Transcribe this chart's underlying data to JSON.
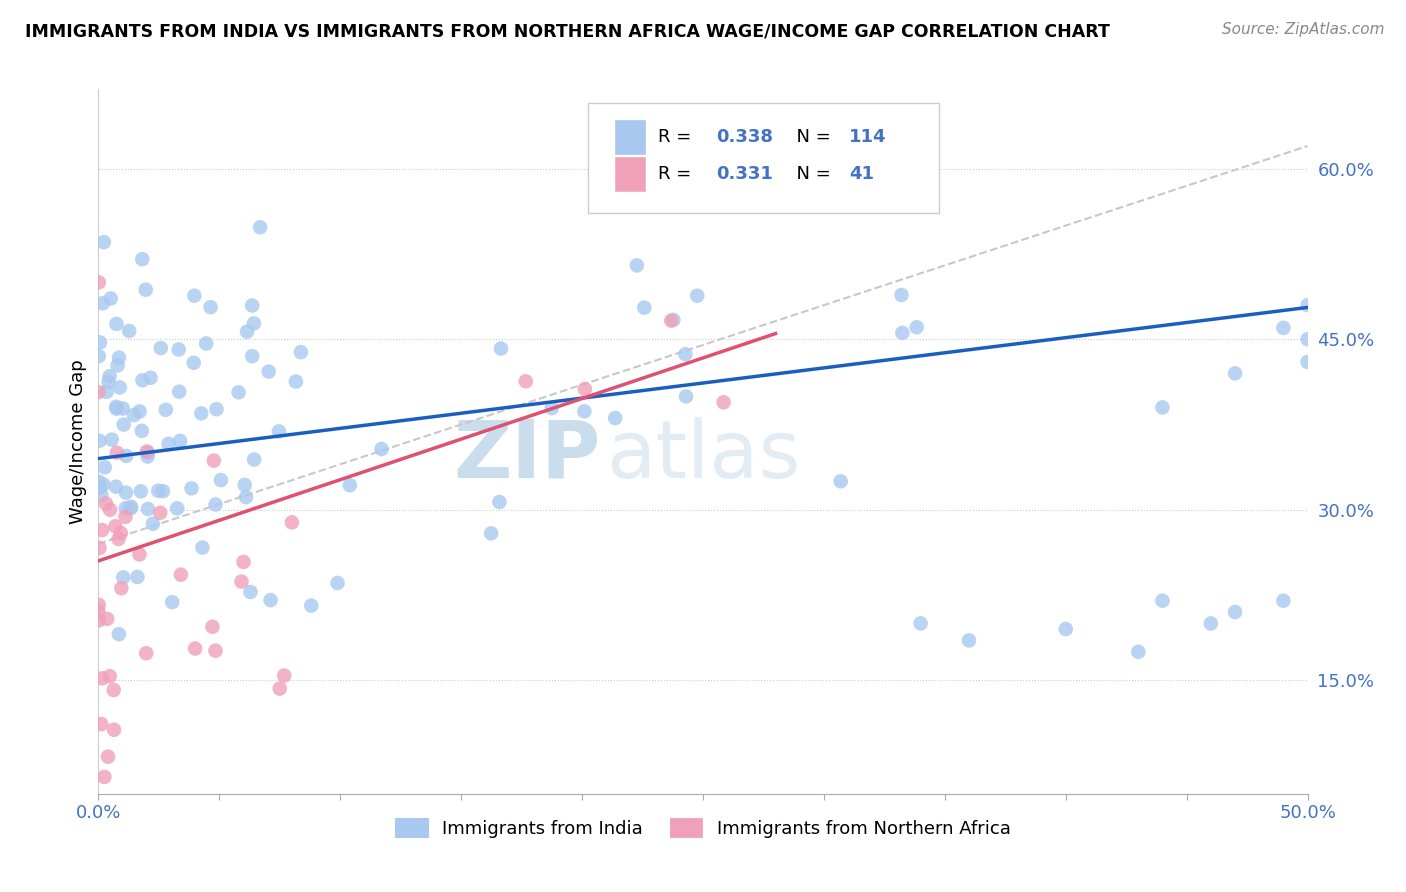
{
  "title": "IMMIGRANTS FROM INDIA VS IMMIGRANTS FROM NORTHERN AFRICA WAGE/INCOME GAP CORRELATION CHART",
  "source": "Source: ZipAtlas.com",
  "ylabel": "Wage/Income Gap",
  "yaxis_ticks": [
    0.15,
    0.3,
    0.45,
    0.6
  ],
  "yaxis_labels": [
    "15.0%",
    "30.0%",
    "45.0%",
    "60.0%"
  ],
  "xlim": [
    0.0,
    0.5
  ],
  "ylim": [
    0.05,
    0.67
  ],
  "legend_india_R": 0.338,
  "legend_india_N": 114,
  "legend_africa_R": 0.331,
  "legend_africa_N": 41,
  "india_color": "#a8c8f0",
  "africa_color": "#f0a0b8",
  "india_line_color": "#1a5fbf",
  "africa_line_color": "#e05070",
  "ref_line_color": "#c8c8c8",
  "watermark_zip": "ZIP",
  "watermark_atlas": "atlas",
  "india_seed": 42,
  "africa_seed": 7,
  "india_line_x0": 0.0,
  "india_line_y0": 0.345,
  "india_line_x1": 0.5,
  "india_line_y1": 0.478,
  "africa_line_x0": 0.0,
  "africa_line_y0": 0.255,
  "africa_line_x1": 0.28,
  "africa_line_y1": 0.455,
  "ref_line_x0": 0.0,
  "ref_line_y0": 0.27,
  "ref_line_x1": 0.5,
  "ref_line_y1": 0.62,
  "legend_label_india": "Immigrants from India",
  "legend_label_africa": "Immigrants from Northern Africa"
}
